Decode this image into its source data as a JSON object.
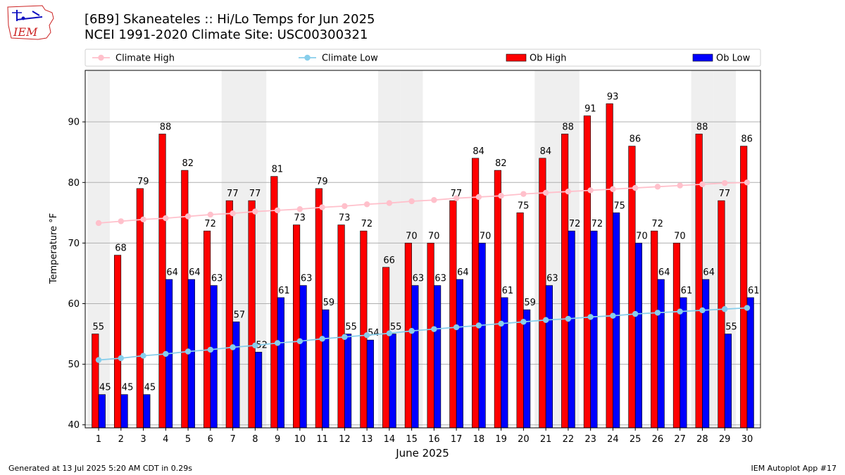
{
  "header": {
    "title_line1": "[6B9] Skaneateles :: Hi/Lo Temps for Jun 2025",
    "title_line2": "NCEI 1991-2020 Climate Site: USC00300321",
    "logo_text": "IEM"
  },
  "footer": {
    "generated": "Generated at 13 Jul 2025 5:20 AM CDT in 0.29s",
    "app": "IEM Autoplot App #17"
  },
  "colors": {
    "ob_high": "#ff0000",
    "ob_low": "#0000ff",
    "climate_high": "#ffc0cb",
    "climate_low": "#87ceeb",
    "weekend_shade": "#efefef",
    "logo": "#cc2222"
  },
  "chart_data": {
    "type": "bar",
    "xlabel": "June 2025",
    "ylabel": "Temperature °F",
    "ylim": [
      39.5,
      98.5
    ],
    "yticks": [
      40,
      50,
      60,
      70,
      80,
      90
    ],
    "grid": true,
    "legend_placement": "top",
    "weekend_days": [
      1,
      7,
      8,
      14,
      15,
      21,
      22,
      28,
      29
    ],
    "categories": [
      "1",
      "2",
      "3",
      "4",
      "5",
      "6",
      "7",
      "8",
      "9",
      "10",
      "11",
      "12",
      "13",
      "14",
      "15",
      "16",
      "17",
      "18",
      "19",
      "20",
      "21",
      "22",
      "23",
      "24",
      "25",
      "26",
      "27",
      "28",
      "29",
      "30"
    ],
    "series": [
      {
        "name": "Climate High",
        "kind": "line",
        "values": [
          73.3,
          73.6,
          73.9,
          74.1,
          74.4,
          74.7,
          74.9,
          75.2,
          75.4,
          75.6,
          75.9,
          76.1,
          76.4,
          76.6,
          76.9,
          77.1,
          77.4,
          77.6,
          77.8,
          78.1,
          78.3,
          78.5,
          78.7,
          78.9,
          79.1,
          79.3,
          79.5,
          79.7,
          79.9,
          80.0
        ]
      },
      {
        "name": "Climate Low",
        "kind": "line",
        "values": [
          50.7,
          51.0,
          51.4,
          51.7,
          52.1,
          52.4,
          52.8,
          53.1,
          53.5,
          53.8,
          54.2,
          54.5,
          54.8,
          55.1,
          55.5,
          55.8,
          56.1,
          56.4,
          56.7,
          57.0,
          57.3,
          57.5,
          57.8,
          58.0,
          58.3,
          58.5,
          58.7,
          58.9,
          59.1,
          59.3
        ]
      },
      {
        "name": "Ob High",
        "kind": "bar",
        "values": [
          55,
          68,
          79,
          88,
          82,
          72,
          77,
          77,
          81,
          73,
          79,
          73,
          72,
          66,
          70,
          70,
          77,
          84,
          82,
          75,
          84,
          88,
          91,
          93,
          86,
          72,
          70,
          88,
          77,
          86
        ]
      },
      {
        "name": "Ob Low",
        "kind": "bar",
        "values": [
          45,
          45,
          45,
          64,
          64,
          63,
          57,
          52,
          61,
          63,
          59,
          55,
          54,
          55,
          63,
          63,
          64,
          70,
          61,
          59,
          63,
          72,
          72,
          75,
          70,
          64,
          61,
          64,
          55,
          61
        ]
      }
    ]
  }
}
